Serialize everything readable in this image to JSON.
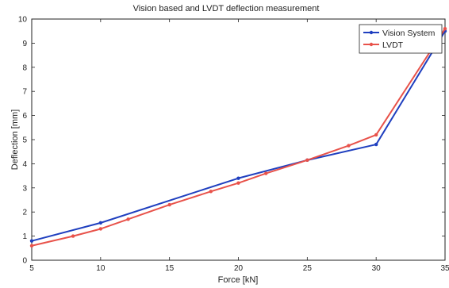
{
  "chart_data": {
    "type": "line",
    "title": "Vision based and LVDT deflection measurement",
    "xlabel": "Force [kN]",
    "ylabel": "Deflection [mm]",
    "xlim": [
      5,
      35
    ],
    "ylim": [
      0,
      10
    ],
    "xticks": [
      5,
      10,
      15,
      20,
      25,
      30,
      35
    ],
    "yticks": [
      0,
      1,
      2,
      3,
      4,
      5,
      6,
      7,
      8,
      9,
      10
    ],
    "grid": false,
    "legend_position": "top-right",
    "series": [
      {
        "name": "Vision System",
        "color": "#1f3fbf",
        "marker": "dot",
        "x": [
          5,
          10,
          20,
          25,
          30,
          35
        ],
        "y": [
          0.8,
          1.55,
          3.4,
          4.15,
          4.8,
          9.5
        ]
      },
      {
        "name": "LVDT",
        "color": "#e8524a",
        "marker": "dot",
        "x": [
          5,
          8,
          10,
          12,
          15,
          18,
          20,
          22,
          25,
          28,
          30,
          35
        ],
        "y": [
          0.6,
          1.0,
          1.3,
          1.7,
          2.3,
          2.85,
          3.2,
          3.6,
          4.15,
          4.75,
          5.2,
          9.6
        ]
      }
    ]
  }
}
